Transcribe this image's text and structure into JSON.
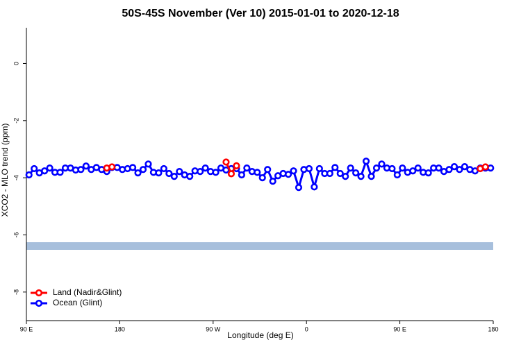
{
  "chart_data": {
    "type": "line",
    "title": "50S-45S November (Ver 10)   2015-01-01 to 2020-12-18",
    "x_label": "Longitude (deg E)",
    "y_label": "XCO2 - MLO trend (ppm)",
    "xlim": [
      90,
      540
    ],
    "xticks": [
      {
        "value": 90,
        "label": "90 E"
      },
      {
        "value": 180,
        "label": "180"
      },
      {
        "value": 270,
        "label": "90 W"
      },
      {
        "value": 360,
        "label": "0"
      },
      {
        "value": 450,
        "label": "90 E"
      },
      {
        "value": 540,
        "label": "180"
      }
    ],
    "ylim": [
      -9.0,
      1.25
    ],
    "yticks": [
      -8,
      -6,
      -4,
      -2,
      0
    ],
    "legend": "bottom-left",
    "series": [
      {
        "name": "Land (Nadir&Glint)",
        "color": "#ff0000",
        "x": [
          167.5,
          172.5,
          null,
          282.5,
          287.5,
          292.5,
          null,
          527.5,
          532.5
        ],
        "values": [
          -3.66,
          -3.62,
          null,
          -3.45,
          -3.86,
          -3.58,
          null,
          -3.68,
          -3.62
        ]
      },
      {
        "name": "Ocean (Glint)",
        "color": "#0000ff",
        "x": [
          92.5,
          97.5,
          102.5,
          107.5,
          112.5,
          117.5,
          122.5,
          127.5,
          132.5,
          137.5,
          142.5,
          147.5,
          152.5,
          157.5,
          162.5,
          167.5,
          172.5,
          177.5,
          182.5,
          187.5,
          192.5,
          197.5,
          202.5,
          207.5,
          212.5,
          217.5,
          222.5,
          227.5,
          232.5,
          237.5,
          242.5,
          247.5,
          252.5,
          257.5,
          262.5,
          267.5,
          272.5,
          277.5,
          282.5,
          287.5,
          292.5,
          297.5,
          302.5,
          307.5,
          312.5,
          317.5,
          322.5,
          327.5,
          332.5,
          337.5,
          342.5,
          347.5,
          352.5,
          357.5,
          362.5,
          367.5,
          372.5,
          377.5,
          382.5,
          387.5,
          392.5,
          397.5,
          402.5,
          407.5,
          412.5,
          417.5,
          422.5,
          427.5,
          432.5,
          437.5,
          442.5,
          447.5,
          452.5,
          457.5,
          462.5,
          467.5,
          472.5,
          477.5,
          482.5,
          487.5,
          492.5,
          497.5,
          502.5,
          507.5,
          512.5,
          517.5,
          522.5,
          527.5,
          532.5,
          537.5
        ],
        "values": [
          -3.9,
          -3.68,
          -3.83,
          -3.76,
          -3.66,
          -3.81,
          -3.81,
          -3.66,
          -3.66,
          -3.73,
          -3.71,
          -3.59,
          -3.71,
          -3.64,
          -3.71,
          -3.78,
          -3.64,
          -3.64,
          -3.71,
          -3.68,
          -3.64,
          -3.83,
          -3.71,
          -3.52,
          -3.81,
          -3.83,
          -3.68,
          -3.85,
          -3.95,
          -3.78,
          -3.9,
          -3.95,
          -3.76,
          -3.78,
          -3.66,
          -3.78,
          -3.81,
          -3.66,
          -3.73,
          -3.68,
          -3.68,
          -3.9,
          -3.66,
          -3.78,
          -3.81,
          -4.0,
          -3.71,
          -4.12,
          -3.93,
          -3.85,
          -3.88,
          -3.76,
          -4.34,
          -3.71,
          -3.68,
          -4.32,
          -3.68,
          -3.85,
          -3.85,
          -3.64,
          -3.85,
          -3.95,
          -3.66,
          -3.83,
          -3.95,
          -3.42,
          -3.95,
          -3.66,
          -3.52,
          -3.66,
          -3.68,
          -3.9,
          -3.66,
          -3.81,
          -3.76,
          -3.66,
          -3.81,
          -3.83,
          -3.66,
          -3.66,
          -3.78,
          -3.71,
          -3.61,
          -3.71,
          -3.61,
          -3.71,
          -3.76,
          -3.66,
          -3.66,
          -3.66
        ]
      }
    ]
  }
}
